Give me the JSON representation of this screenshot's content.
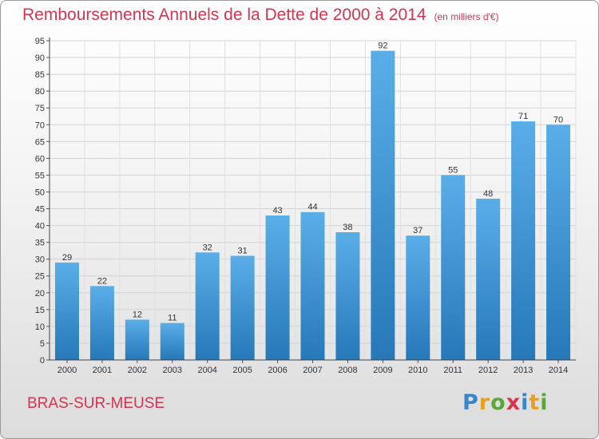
{
  "title": "Remboursements Annuels de la Dette de 2000 à 2014",
  "subtitle": "(en milliers d'€)",
  "place": "BRAS-SUR-MEUSE",
  "logo": "Proxiti",
  "colors": {
    "bar_light": "#5aaee8",
    "bar_dark": "#2678b8",
    "title": "#d7344f"
  },
  "chart_data": {
    "type": "bar",
    "title": "Remboursements Annuels de la Dette de 2000 à 2014",
    "subtitle": "(en milliers d'€)",
    "categories": [
      "2000",
      "2001",
      "2002",
      "2003",
      "2004",
      "2005",
      "2006",
      "2007",
      "2008",
      "2009",
      "2010",
      "2011",
      "2012",
      "2013",
      "2014"
    ],
    "values": [
      29,
      22,
      12,
      11,
      32,
      31,
      43,
      44,
      38,
      92,
      37,
      55,
      48,
      71,
      70
    ],
    "ylim": [
      0,
      95
    ],
    "ytick_step": 5,
    "grid": true,
    "data_labels": true
  }
}
